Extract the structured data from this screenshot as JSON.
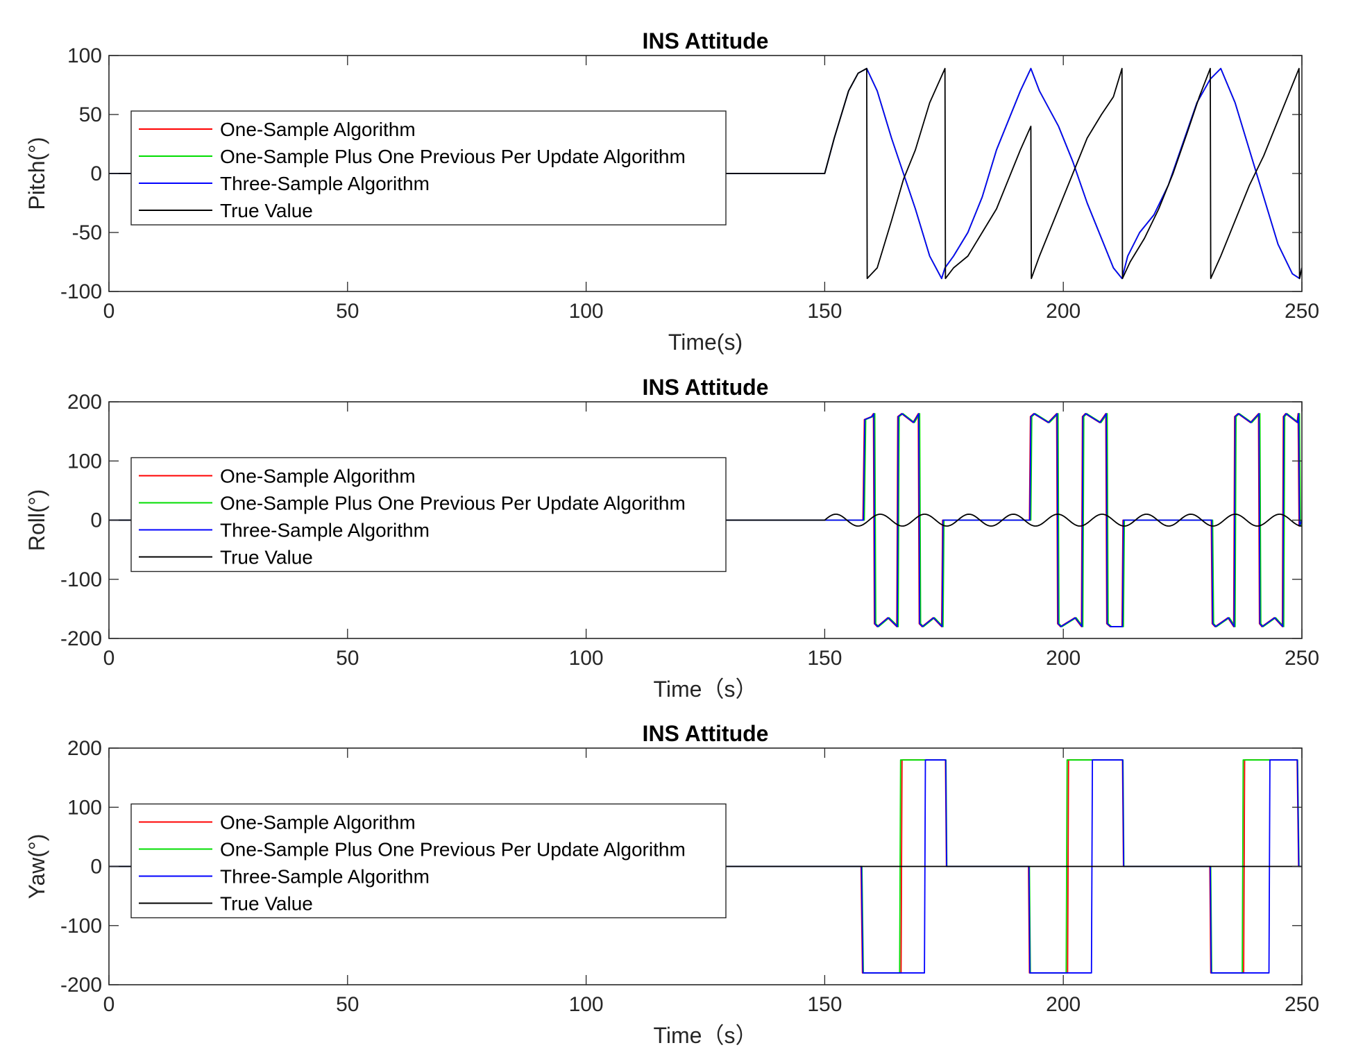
{
  "chart_data": [
    {
      "type": "line",
      "title": "INS Attitude",
      "xlabel": "Time(s)",
      "ylabel": "Pitch(°)",
      "xlim": [
        0,
        250
      ],
      "ylim": [
        -100,
        100
      ],
      "xticks": [
        0,
        50,
        100,
        150,
        200,
        250
      ],
      "yticks": [
        -100,
        -50,
        0,
        50,
        100
      ],
      "legend": {
        "location": "center-left"
      },
      "series": [
        {
          "name": "One-Sample Algorithm",
          "color": "#ff0000",
          "x": [
            0,
            150,
            152,
            155,
            157,
            158.8,
            161,
            164,
            166.5,
            169,
            172,
            174.5,
            175.2,
            177,
            180,
            183,
            186,
            189,
            191,
            193.2,
            195,
            197,
            199,
            202,
            205,
            208,
            210.5,
            212.3,
            213.5,
            216,
            219,
            222,
            225,
            228,
            230.8,
            233,
            236,
            239,
            242,
            245,
            248,
            249.5,
            250
          ],
          "y": [
            0,
            0,
            30,
            70,
            85,
            89,
            70,
            30,
            0,
            -30,
            -70,
            -89,
            -80,
            -70,
            -50,
            -20,
            20,
            50,
            70,
            89,
            70,
            55,
            40,
            10,
            -25,
            -55,
            -80,
            -89,
            -70,
            -50,
            -35,
            -10,
            25,
            60,
            80,
            89,
            60,
            20,
            -20,
            -60,
            -85,
            -89,
            -80
          ]
        },
        {
          "name": "One-Sample Plus One Previous Per Update Algorithm",
          "color": "#00dd00",
          "x": [
            0,
            150,
            152,
            155,
            157,
            158.8,
            161,
            164,
            166.5,
            169,
            172,
            174.5,
            175.2,
            177,
            180,
            183,
            186,
            189,
            191,
            193.2,
            195,
            197,
            199,
            202,
            205,
            208,
            210.5,
            212.3,
            213.5,
            216,
            219,
            222,
            225,
            228,
            230.8,
            233,
            236,
            239,
            242,
            245,
            248,
            249.5,
            250
          ],
          "y": [
            0,
            0,
            30,
            70,
            85,
            89,
            70,
            30,
            0,
            -30,
            -70,
            -89,
            -80,
            -70,
            -50,
            -20,
            20,
            50,
            70,
            89,
            70,
            55,
            40,
            10,
            -25,
            -55,
            -80,
            -89,
            -70,
            -50,
            -35,
            -10,
            25,
            60,
            80,
            89,
            60,
            20,
            -20,
            -60,
            -85,
            -89,
            -80
          ]
        },
        {
          "name": "Three-Sample Algorithm",
          "color": "#0000ff",
          "x": [
            0,
            150,
            152,
            155,
            157,
            158.8,
            161,
            164,
            166.5,
            169,
            172,
            174.5,
            175.2,
            177,
            180,
            183,
            186,
            189,
            191,
            193.2,
            195,
            197,
            199,
            202,
            205,
            208,
            210.5,
            212.3,
            213.5,
            216,
            219,
            222,
            225,
            228,
            230.8,
            233,
            236,
            239,
            242,
            245,
            248,
            249.5,
            250
          ],
          "y": [
            0,
            0,
            30,
            70,
            85,
            89,
            70,
            30,
            0,
            -30,
            -70,
            -89,
            -80,
            -70,
            -50,
            -20,
            20,
            50,
            70,
            89,
            70,
            55,
            40,
            10,
            -25,
            -55,
            -80,
            -89,
            -70,
            -50,
            -35,
            -10,
            25,
            60,
            80,
            89,
            60,
            20,
            -20,
            -60,
            -85,
            -89,
            -80
          ]
        },
        {
          "name": "True Value",
          "color": "#000000",
          "x": [
            0,
            150,
            152,
            155,
            157,
            158.8,
            158.9,
            161,
            164,
            166.5,
            169,
            172,
            175.2,
            175.3,
            177,
            180,
            183,
            186,
            189,
            191,
            193.2,
            193.3,
            195,
            197,
            199,
            202,
            205,
            208,
            210.5,
            212.3,
            212.4,
            214,
            217,
            220,
            223,
            226,
            228.5,
            230.8,
            230.9,
            233,
            236,
            239,
            242,
            245,
            248,
            249.4,
            249.5,
            250
          ],
          "y": [
            0,
            0,
            30,
            70,
            85,
            89,
            -89,
            -80,
            -40,
            -5,
            20,
            60,
            89,
            -89,
            -80,
            -70,
            -50,
            -30,
            0,
            20,
            40,
            -89,
            -70,
            -50,
            -30,
            0,
            30,
            50,
            65,
            89,
            -89,
            -75,
            -55,
            -30,
            0,
            35,
            65,
            89,
            -89,
            -70,
            -40,
            -10,
            15,
            45,
            75,
            89,
            -89,
            -80
          ]
        }
      ]
    },
    {
      "type": "line",
      "title": "INS Attitude",
      "xlabel": "Time（s）",
      "ylabel": "Roll(°)",
      "xlim": [
        0,
        250
      ],
      "ylim": [
        -200,
        200
      ],
      "xticks": [
        0,
        50,
        100,
        150,
        200,
        250
      ],
      "yticks": [
        -200,
        -100,
        0,
        100,
        200
      ],
      "legend": {
        "location": "center-left"
      },
      "series": [
        {
          "name": "One-Sample Algorithm",
          "color": "#ff0000",
          "x": [
            0,
            150,
            158.0,
            158.3,
            159.8,
            160.2,
            160.4,
            161.0,
            163.2,
            165.1,
            165.3,
            166.1,
            168.5,
            169.6,
            169.8,
            170.4,
            172.7,
            174.5,
            174.7,
            175.2,
            192.9,
            193.1,
            193.8,
            196.8,
            198.6,
            198.8,
            199.4,
            202.4,
            203.8,
            204.0,
            204.6,
            207.6,
            208.9,
            209.1,
            209.8,
            212.3,
            212.5,
            231.0,
            231.2,
            231.8,
            234.5,
            235.7,
            235.9,
            236.6,
            239.2,
            240.9,
            241.1,
            241.6,
            244.2,
            245.9,
            246.1,
            246.6,
            249.0,
            249.2,
            249.4,
            250
          ],
          "y": [
            0,
            0,
            0,
            170,
            175,
            180,
            -175,
            -180,
            -165,
            -180,
            175,
            180,
            165,
            180,
            -175,
            -180,
            -165,
            -180,
            0,
            0,
            0,
            175,
            180,
            165,
            180,
            -175,
            -180,
            -165,
            -180,
            175,
            180,
            165,
            180,
            -175,
            -180,
            -180,
            0,
            0,
            -175,
            -180,
            -165,
            -180,
            175,
            180,
            165,
            180,
            -175,
            -180,
            -165,
            -180,
            175,
            180,
            165,
            180,
            -10,
            0
          ]
        },
        {
          "name": "One-Sample Plus One Previous Per Update Algorithm",
          "color": "#00dd00",
          "x": [
            0,
            150,
            158.3,
            158.6,
            160.1,
            160.5,
            160.7,
            161.3,
            163.5,
            165.4,
            165.6,
            166.4,
            168.8,
            169.9,
            170.1,
            170.7,
            173.0,
            174.8,
            175.0,
            175.5,
            193.2,
            193.4,
            194.1,
            197.1,
            198.9,
            199.1,
            199.7,
            202.7,
            204.1,
            204.3,
            204.9,
            207.9,
            209.2,
            209.4,
            210.1,
            212.6,
            212.8,
            231.3,
            231.5,
            232.1,
            234.8,
            236.0,
            236.2,
            236.9,
            239.5,
            241.2,
            241.4,
            241.9,
            244.5,
            246.2,
            246.4,
            246.9,
            249.3,
            249.5,
            249.7,
            250
          ],
          "y": [
            0,
            0,
            0,
            170,
            175,
            180,
            -175,
            -180,
            -165,
            -180,
            175,
            180,
            165,
            180,
            -175,
            -180,
            -165,
            -180,
            0,
            0,
            0,
            175,
            180,
            165,
            180,
            -175,
            -180,
            -165,
            -180,
            175,
            180,
            165,
            180,
            -175,
            -180,
            -180,
            0,
            0,
            -175,
            -180,
            -165,
            -180,
            175,
            180,
            165,
            180,
            -175,
            -180,
            -165,
            -180,
            175,
            180,
            165,
            180,
            -10,
            0
          ]
        },
        {
          "name": "Three-Sample Algorithm",
          "color": "#0000ff",
          "x": [
            0,
            150,
            158.1,
            158.4,
            159.9,
            160.3,
            160.5,
            161.1,
            163.3,
            165.2,
            165.4,
            166.2,
            168.6,
            169.7,
            169.9,
            170.5,
            172.8,
            174.6,
            174.8,
            175.3,
            193.0,
            193.2,
            193.9,
            196.9,
            198.7,
            198.9,
            199.5,
            202.5,
            203.9,
            204.1,
            204.7,
            207.7,
            209.0,
            209.2,
            209.9,
            212.4,
            212.6,
            231.1,
            231.3,
            231.9,
            234.6,
            235.8,
            236.0,
            236.7,
            239.3,
            241.0,
            241.2,
            241.7,
            244.3,
            246.0,
            246.2,
            246.7,
            249.1,
            249.3,
            249.5,
            250
          ],
          "y": [
            0,
            0,
            0,
            170,
            175,
            180,
            -175,
            -180,
            -165,
            -180,
            175,
            180,
            165,
            180,
            -175,
            -180,
            -165,
            -180,
            0,
            0,
            0,
            175,
            180,
            165,
            180,
            -175,
            -180,
            -165,
            -180,
            175,
            180,
            165,
            180,
            -175,
            -180,
            -180,
            0,
            0,
            -175,
            -180,
            -165,
            -180,
            175,
            180,
            165,
            180,
            -175,
            -180,
            -165,
            -180,
            175,
            180,
            165,
            180,
            -10,
            0
          ]
        },
        {
          "name": "True Value",
          "color": "#000000",
          "wave": {
            "start": 150,
            "end": 250,
            "amplitude": 10,
            "period": 9.3
          },
          "x": [
            0,
            150
          ],
          "y": [
            0,
            0
          ]
        }
      ]
    },
    {
      "type": "line",
      "title": "INS Attitude",
      "xlabel": "Time（s）",
      "ylabel": "Yaw(°)",
      "xlim": [
        0,
        250
      ],
      "ylim": [
        -200,
        200
      ],
      "xticks": [
        0,
        50,
        100,
        150,
        200,
        250
      ],
      "yticks": [
        -200,
        -100,
        0,
        100,
        200
      ],
      "legend": {
        "location": "center-left"
      },
      "series": [
        {
          "name": "One-Sample Algorithm",
          "color": "#ff0000",
          "x": [
            0,
            157.6,
            157.9,
            166.0,
            166.2,
            175.3,
            175.5,
            192.7,
            192.9,
            200.9,
            201.1,
            212.4,
            212.6,
            230.7,
            230.9,
            237.8,
            238.0,
            249.0,
            249.3,
            250
          ],
          "y": [
            0,
            0,
            -180,
            -180,
            180,
            180,
            0,
            0,
            -180,
            -180,
            180,
            180,
            0,
            0,
            -180,
            -180,
            180,
            180,
            0,
            0
          ]
        },
        {
          "name": "One-Sample Plus One Previous Per Update Algorithm",
          "color": "#00dd00",
          "x": [
            0,
            157.8,
            158.1,
            165.7,
            165.9,
            175.4,
            175.6,
            192.9,
            193.1,
            200.6,
            200.8,
            212.5,
            212.7,
            230.9,
            231.1,
            237.5,
            237.7,
            249.1,
            249.4,
            250
          ],
          "y": [
            0,
            0,
            -180,
            -180,
            180,
            180,
            0,
            0,
            -180,
            -180,
            180,
            180,
            0,
            0,
            -180,
            -180,
            180,
            180,
            0,
            0
          ]
        },
        {
          "name": "Three-Sample Algorithm",
          "color": "#0000ff",
          "x": [
            0,
            157.7,
            158.0,
            170.9,
            171.1,
            175.35,
            175.55,
            192.8,
            193.0,
            205.9,
            206.1,
            212.45,
            212.65,
            230.8,
            231.0,
            243.1,
            243.3,
            249.05,
            249.35,
            250
          ],
          "y": [
            0,
            0,
            -180,
            -180,
            180,
            180,
            0,
            0,
            -180,
            -180,
            180,
            180,
            0,
            0,
            -180,
            -180,
            180,
            180,
            0,
            0
          ]
        },
        {
          "name": "True Value",
          "color": "#000000",
          "x": [
            0,
            250
          ],
          "y": [
            0,
            0
          ]
        }
      ]
    }
  ]
}
